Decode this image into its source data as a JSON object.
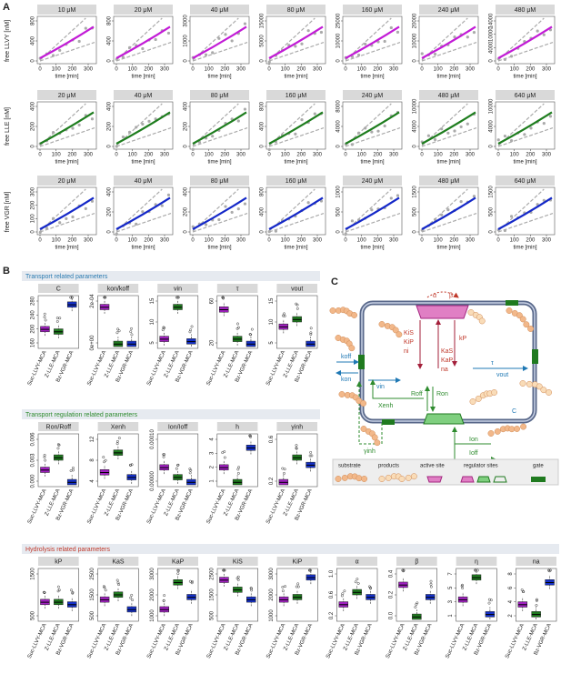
{
  "panel_a": {
    "label": "A",
    "x_label": "time [min]",
    "xticks": [
      "0",
      "100",
      "200",
      "300"
    ],
    "rows": [
      {
        "y_label": "free LLVY [nM]",
        "color": "#c21bd6",
        "panels": [
          {
            "title": "10 μM",
            "yticks": [
              "0",
              "400",
              "800"
            ]
          },
          {
            "title": "20 μM",
            "yticks": [
              "0",
              "400",
              "800"
            ]
          },
          {
            "title": "40 μM",
            "yticks": [
              "0",
              "1000",
              "3000"
            ]
          },
          {
            "title": "80 μM",
            "yticks": [
              "0",
              "5000",
              "15000"
            ]
          },
          {
            "title": "160 μM",
            "yticks": [
              "0",
              "10000",
              "25000"
            ]
          },
          {
            "title": "240 μM",
            "yticks": [
              "0",
              "10000",
              "20000"
            ]
          },
          {
            "title": "480 μM",
            "yticks": [
              "0",
              "4000",
              "10000",
              "14000"
            ]
          }
        ]
      },
      {
        "y_label": "free LLE [nM]",
        "color": "#1e7d1e",
        "panels": [
          {
            "title": "20 μM",
            "yticks": [
              "0",
              "200",
              "400"
            ]
          },
          {
            "title": "40 μM",
            "yticks": [
              "0",
              "200",
              "400"
            ]
          },
          {
            "title": "80 μM",
            "yticks": [
              "0",
              "200",
              "400"
            ]
          },
          {
            "title": "160 μM",
            "yticks": [
              "0",
              "400",
              "800"
            ]
          },
          {
            "title": "240 μM",
            "yticks": [
              "0",
              "4000",
              "8000"
            ]
          },
          {
            "title": "480 μM",
            "yticks": [
              "0",
              "4000",
              "10000"
            ]
          },
          {
            "title": "640 μM",
            "yticks": [
              "0",
              "4000",
              "10000"
            ]
          }
        ]
      },
      {
        "y_label": "free VGR [nM]",
        "color": "#1428c8",
        "panels": [
          {
            "title": "20 μM",
            "yticks": [
              "0",
              "100",
              "200",
              "300"
            ]
          },
          {
            "title": "40 μM",
            "yticks": [
              "0",
              "200",
              "400"
            ]
          },
          {
            "title": "80 μM",
            "yticks": [
              "0",
              "200",
              "400"
            ]
          },
          {
            "title": "160 μM",
            "yticks": [
              "0",
              "400",
              "800"
            ]
          },
          {
            "title": "240 μM",
            "yticks": [
              "0",
              "500",
              "1000"
            ]
          },
          {
            "title": "480 μM",
            "yticks": [
              "0",
              "500",
              "1500"
            ]
          },
          {
            "title": "640 μM",
            "yticks": [
              "0",
              "500",
              "1500"
            ]
          }
        ]
      }
    ]
  },
  "panel_b": {
    "label": "B",
    "compounds": [
      "Suc-LLVY-MCA",
      "Z-LLE-MCA",
      "Bz-VGR-MCA"
    ],
    "colors": [
      "#a020c0",
      "#1f7a1f",
      "#1530c8"
    ],
    "sections": [
      {
        "title": "Transport related parameters",
        "color": "#2a7ab0",
        "params": [
          {
            "name": "C",
            "yticks": [
              "160",
              "200",
              "240",
              "280"
            ]
          },
          {
            "name": "kon/koff",
            "yticks": [
              "0e+00",
              "2e-04"
            ]
          },
          {
            "name": "vin",
            "yticks": [
              "5",
              "10",
              "15"
            ]
          },
          {
            "name": "τ",
            "yticks": [
              "20",
              "60"
            ]
          },
          {
            "name": "vout",
            "yticks": [
              "5",
              "10",
              "15"
            ]
          }
        ]
      },
      {
        "title": "Transport regulation related parameters",
        "color": "#2e8b2e",
        "params": [
          {
            "name": "Ron/Roff",
            "yticks": [
              "0.000",
              "0.003",
              "0.006"
            ]
          },
          {
            "name": "Xenh",
            "yticks": [
              "4",
              "8",
              "12"
            ]
          },
          {
            "name": "Ion/Ioff",
            "yticks": [
              "0.00000",
              "0.00010"
            ]
          },
          {
            "name": "h",
            "yticks": [
              "1",
              "2",
              "3",
              "4"
            ]
          },
          {
            "name": "γinh",
            "yticks": [
              "0.2",
              "0.6"
            ]
          }
        ]
      },
      {
        "title": "Hydrolysis related parameters",
        "color": "#c0392b",
        "params": [
          {
            "name": "kP",
            "yticks": [
              "500",
              "1500"
            ]
          },
          {
            "name": "KaS",
            "yticks": [
              "500",
              "1500",
              "2500"
            ]
          },
          {
            "name": "KaP",
            "yticks": [
              "1000",
              "2000",
              "3000"
            ]
          },
          {
            "name": "KiS",
            "yticks": [
              "500",
              "1500",
              "2500"
            ]
          },
          {
            "name": "KiP",
            "yticks": [
              "1000",
              "2000",
              "3000"
            ]
          },
          {
            "name": "α",
            "yticks": [
              "0.2",
              "0.6",
              "1.0"
            ]
          },
          {
            "name": "β",
            "yticks": [
              "0.0",
              "0.2",
              "0.4"
            ]
          },
          {
            "name": "η",
            "yticks": [
              "1",
              "3",
              "5",
              "7"
            ]
          },
          {
            "name": "na",
            "yticks": [
              "2",
              "4",
              "6",
              "8"
            ]
          }
        ]
      }
    ]
  },
  "panel_c": {
    "label": "C",
    "labels": {
      "alpha": "α",
      "beta": "β",
      "kis": "KiS",
      "kip": "KiP",
      "ni": "ni",
      "kp": "kP",
      "kas": "KaS",
      "kap": "KaP",
      "na": "na",
      "koff": "koff",
      "kon": "kon",
      "vin": "vin",
      "tau": "τ",
      "vout": "vout",
      "roff": "Roff",
      "ron": "Ron",
      "xenh": "Xenh",
      "ginh": "γinh",
      "ion": "Ion",
      "ioff": "Ioff",
      "c": "C"
    },
    "legend": [
      "substrate",
      "products",
      "active site",
      "regulator sites",
      "gate"
    ]
  }
}
